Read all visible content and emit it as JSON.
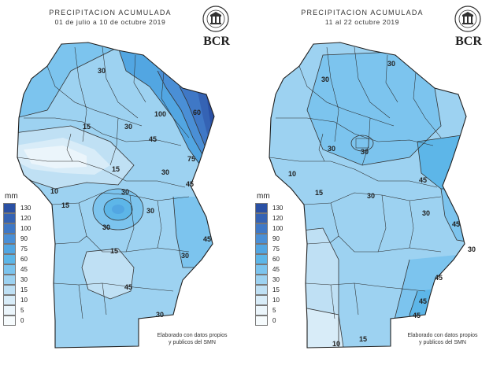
{
  "legend": {
    "unit": "mm",
    "bins": [
      {
        "label": "130",
        "color": "#2a50a4"
      },
      {
        "label": "120",
        "color": "#3563b4"
      },
      {
        "label": "100",
        "color": "#3f78c6"
      },
      {
        "label": "90",
        "color": "#4a8fd6"
      },
      {
        "label": "75",
        "color": "#52a6e2"
      },
      {
        "label": "60",
        "color": "#5db6e8"
      },
      {
        "label": "45",
        "color": "#7cc4ee"
      },
      {
        "label": "30",
        "color": "#9dd2f1"
      },
      {
        "label": "15",
        "color": "#bfe0f4"
      },
      {
        "label": "10",
        "color": "#d8ecf8"
      },
      {
        "label": "5",
        "color": "#ebf5fb"
      },
      {
        "label": "0",
        "color": "#f6fbfd"
      }
    ]
  },
  "maps": [
    {
      "id": "left",
      "title": "PRECIPITACION ACUMULADA",
      "subtitle": "01 de julio a 10 de octubre 2019",
      "brand": "BCR",
      "credit_line1": "Elaborado con datos propios",
      "credit_line2": "y publicos del SMN",
      "isoline_labels": [
        "30",
        "30",
        "30",
        "30",
        "30",
        "30",
        "30",
        "30",
        "45",
        "45",
        "60",
        "75",
        "100",
        "15",
        "15",
        "15",
        "10",
        "15",
        "45",
        "45"
      ]
    },
    {
      "id": "right",
      "title": "PRECIPITACION ACUMULADA",
      "subtitle": "11 al 22 octubre 2019",
      "brand": "BCR",
      "credit_line1": "Elaborado con datos propios",
      "credit_line2": "y publicos del SMN",
      "isoline_labels": [
        "30",
        "30",
        "30",
        "30",
        "30",
        "30",
        "30",
        "45",
        "45",
        "45",
        "45",
        "45",
        "15",
        "10",
        "10",
        "15"
      ]
    }
  ]
}
